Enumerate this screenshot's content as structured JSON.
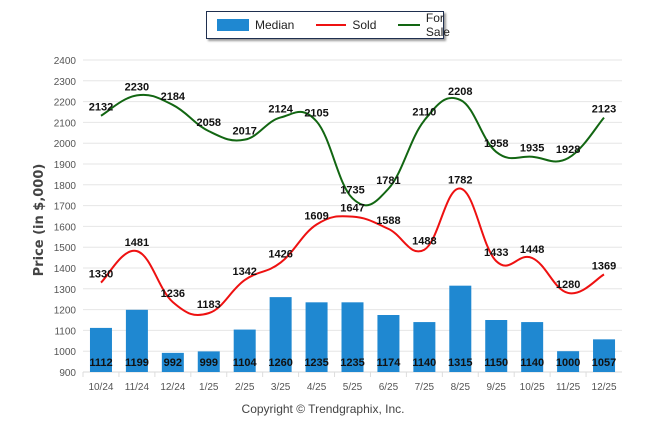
{
  "legend": {
    "items": [
      {
        "label": "Median",
        "color": "#1f88d1",
        "kind": "bar"
      },
      {
        "label": "Sold",
        "color": "#ee1111",
        "kind": "line"
      },
      {
        "label": "For Sale",
        "color": "#126612",
        "kind": "line"
      }
    ]
  },
  "copyright": "Copyright © Trendgraphix, Inc.",
  "chart_data": {
    "type": "bar",
    "title": "",
    "xlabel": "",
    "ylabel": "Price (in $,000)",
    "ylim": [
      900,
      2400
    ],
    "yticks": [
      900,
      1000,
      1100,
      1200,
      1300,
      1400,
      1500,
      1600,
      1700,
      1800,
      1900,
      2000,
      2100,
      2200,
      2300,
      2400
    ],
    "grid": true,
    "legend_position": "top-center",
    "categories": [
      "10/24",
      "11/24",
      "12/24",
      "1/25",
      "2/25",
      "3/25",
      "4/25",
      "5/25",
      "6/25",
      "7/25",
      "8/25",
      "9/25",
      "10/25",
      "11/25",
      "12/25"
    ],
    "series": [
      {
        "name": "Median",
        "type": "bar",
        "color": "#1f88d1",
        "values": [
          1112,
          1199,
          992,
          999,
          1104,
          1260,
          1235,
          1235,
          1174,
          1140,
          1315,
          1150,
          1140,
          1000,
          1057
        ]
      },
      {
        "name": "Sold",
        "type": "line",
        "color": "#ee1111",
        "values": [
          1330,
          1481,
          1236,
          1183,
          1342,
          1426,
          1609,
          1647,
          1588,
          1488,
          1782,
          1433,
          1448,
          1280,
          1369
        ]
      },
      {
        "name": "For Sale",
        "type": "line",
        "color": "#126612",
        "values": [
          2132,
          2230,
          2184,
          2058,
          2017,
          2124,
          2105,
          1735,
          1781,
          2110,
          2208,
          1958,
          1935,
          1928,
          2123
        ]
      }
    ]
  }
}
